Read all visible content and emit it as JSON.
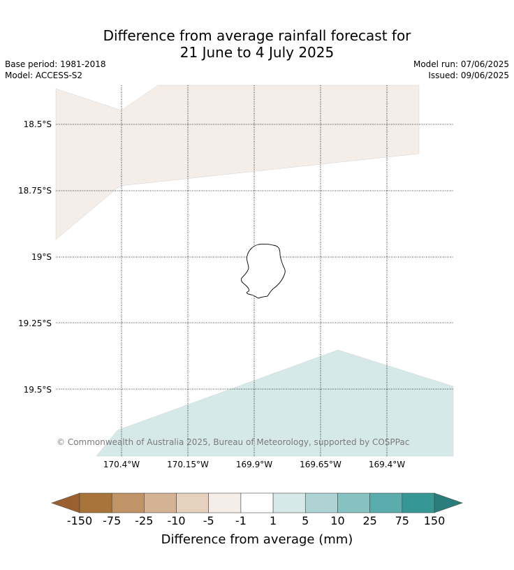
{
  "header": {
    "title_line1": "Difference from average rainfall forecast for",
    "title_line2": "21 June to 4 July 2025",
    "base_period": "Base period: 1981-2018",
    "model": "Model: ACCESS-S2",
    "model_run": "Model run: 07/06/2025",
    "issued": "Issued: 09/06/2025"
  },
  "map": {
    "latitude_labels": [
      "18.5°S",
      "18.75°S",
      "19°S",
      "19.25°S",
      "19.5°S"
    ],
    "longitude_labels": [
      "170.4°W",
      "170.15°W",
      "169.9°W",
      "169.65°W",
      "169.4°W"
    ],
    "region_colors": {
      "dry_slight": "#f4ede8",
      "wet_slight": "#d5eae8"
    },
    "copyright": "© Commonwealth of Australia 2025, Bureau of Meteorology, supported by COSPPac"
  },
  "colorbar": {
    "title": "Difference from average (mm)",
    "tick_labels": [
      "-150",
      "-75",
      "-25",
      "-10",
      "-5",
      "-1",
      "1",
      "5",
      "10",
      "25",
      "75",
      "150"
    ],
    "colors": [
      "#a9743a",
      "#c09467",
      "#d4b394",
      "#e6d1bf",
      "#f4ede8",
      "#ffffff",
      "#d5eae8",
      "#afd3d2",
      "#86c2c2",
      "#5aadac",
      "#369896"
    ],
    "under_color": "#9a6030",
    "over_color": "#2a7d7b"
  }
}
